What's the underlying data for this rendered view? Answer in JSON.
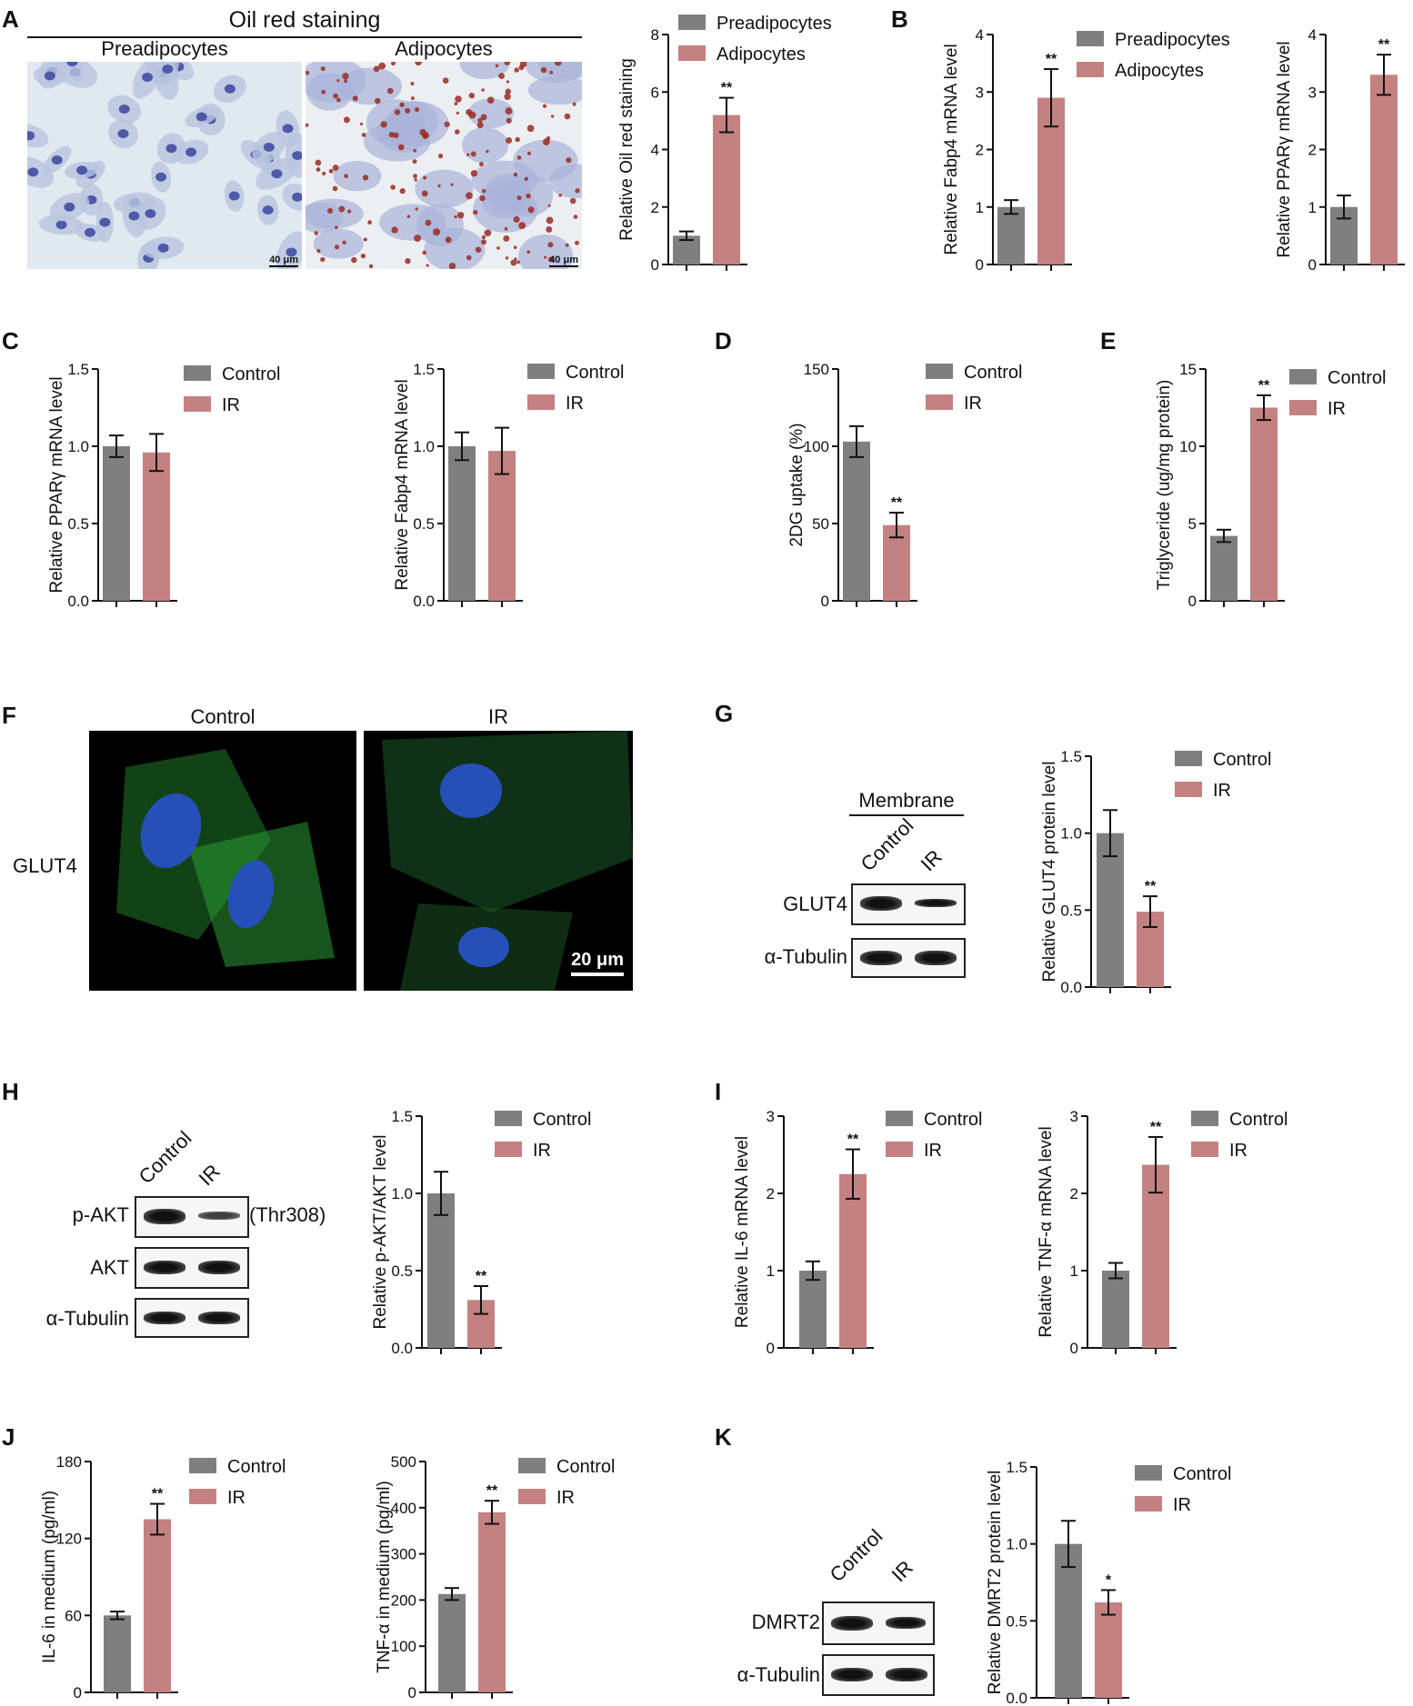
{
  "colors": {
    "gray": "#7f7f7f",
    "red": "#c48181"
  },
  "panel_letters": [
    "A",
    "B",
    "C",
    "D",
    "E",
    "F",
    "G",
    "H",
    "I",
    "J",
    "K"
  ],
  "panelA": {
    "title": "Oil red staining",
    "left_label": "Preadipocytes",
    "right_label": "Adipocytes",
    "scale_bar": "40 μm"
  },
  "panelF": {
    "control_label": "Control",
    "ir_label": "IR",
    "row_label": "GLUT4",
    "scale_bar": "20 μm"
  },
  "panelG": {
    "header": "Membrane",
    "lanes": [
      "Control",
      "IR"
    ],
    "rows": [
      "GLUT4",
      "α-Tubulin"
    ]
  },
  "panelH": {
    "lanes": [
      "Control",
      "IR"
    ],
    "rows": [
      "p-AKT",
      "AKT",
      "α-Tubulin"
    ],
    "annotation": "(Thr308)"
  },
  "panelK": {
    "lanes": [
      "Control",
      "IR"
    ],
    "rows": [
      "DMRT2",
      "α-Tubulin"
    ]
  },
  "chart_data": [
    {
      "id": "A",
      "type": "bar",
      "categories": [
        "Preadipocytes",
        "Adipocytes"
      ],
      "values": [
        1.0,
        5.2
      ],
      "errors": [
        0.15,
        0.6
      ],
      "sig": [
        "",
        "**"
      ],
      "ylabel": "Relative Oil red staining",
      "ylim": [
        0,
        8
      ],
      "ticks": [
        "0",
        "2",
        "4",
        "6",
        "8"
      ],
      "legend": [
        "Preadipocytes",
        "Adipocytes"
      ]
    },
    {
      "id": "B1",
      "type": "bar",
      "categories": [
        "Preadipocytes",
        "Adipocytes"
      ],
      "values": [
        1.0,
        2.9
      ],
      "errors": [
        0.12,
        0.5
      ],
      "sig": [
        "",
        "**"
      ],
      "ylabel": "Relative Fabp4 mRNA level",
      "ylim": [
        0,
        4
      ],
      "ticks": [
        "0",
        "1",
        "2",
        "3",
        "4"
      ],
      "legend": [
        "Preadipocytes",
        "Adipocytes"
      ]
    },
    {
      "id": "B2",
      "type": "bar",
      "categories": [
        "Preadipocytes",
        "Adipocytes"
      ],
      "values": [
        1.0,
        3.3
      ],
      "errors": [
        0.2,
        0.35
      ],
      "sig": [
        "",
        "**"
      ],
      "ylabel": "Relative PPARγ mRNA level",
      "ylim": [
        0,
        4
      ],
      "ticks": [
        "0",
        "1",
        "2",
        "3",
        "4"
      ],
      "legend": []
    },
    {
      "id": "C1",
      "type": "bar",
      "categories": [
        "Control",
        "IR"
      ],
      "values": [
        1.0,
        0.96
      ],
      "errors": [
        0.07,
        0.12
      ],
      "sig": [
        "",
        ""
      ],
      "ylabel": "Relative PPARγ mRNA level",
      "ylim": [
        0,
        1.5
      ],
      "ticks": [
        "0.0",
        "0.5",
        "1.0",
        "1.5"
      ],
      "legend": [
        "Control",
        "IR"
      ]
    },
    {
      "id": "C2",
      "type": "bar",
      "categories": [
        "Control",
        "IR"
      ],
      "values": [
        1.0,
        0.97
      ],
      "errors": [
        0.09,
        0.15
      ],
      "sig": [
        "",
        ""
      ],
      "ylabel": "Relative Fabp4 mRNA level",
      "ylim": [
        0,
        1.5
      ],
      "ticks": [
        "0.0",
        "0.5",
        "1.0",
        "1.5"
      ],
      "legend": [
        "Control",
        "IR"
      ]
    },
    {
      "id": "D",
      "type": "bar",
      "categories": [
        "Control",
        "IR"
      ],
      "values": [
        103,
        49
      ],
      "errors": [
        10,
        8
      ],
      "sig": [
        "",
        "**"
      ],
      "ylabel": "2DG uptake (%)",
      "ylim": [
        0,
        150
      ],
      "ticks": [
        "0",
        "50",
        "100",
        "150"
      ],
      "legend": [
        "Control",
        "IR"
      ]
    },
    {
      "id": "E",
      "type": "bar",
      "categories": [
        "Control",
        "IR"
      ],
      "values": [
        4.2,
        12.5
      ],
      "errors": [
        0.4,
        0.8
      ],
      "sig": [
        "",
        "**"
      ],
      "ylabel": "Triglyceride (ug/mg protein)",
      "ylim": [
        0,
        15
      ],
      "ticks": [
        "0",
        "5",
        "10",
        "15"
      ],
      "legend": [
        "Control",
        "IR"
      ]
    },
    {
      "id": "G",
      "type": "bar",
      "categories": [
        "Control",
        "IR"
      ],
      "values": [
        1.0,
        0.49
      ],
      "errors": [
        0.15,
        0.1
      ],
      "sig": [
        "",
        "**"
      ],
      "ylabel": "Relative GLUT4 protein level",
      "ylim": [
        0,
        1.5
      ],
      "ticks": [
        "0.0",
        "0.5",
        "1.0",
        "1.5"
      ],
      "legend": [
        "Control",
        "IR"
      ]
    },
    {
      "id": "H",
      "type": "bar",
      "categories": [
        "Control",
        "IR"
      ],
      "values": [
        1.0,
        0.31
      ],
      "errors": [
        0.14,
        0.09
      ],
      "sig": [
        "",
        "**"
      ],
      "ylabel": "Relative p-AKT/AKT level",
      "ylim": [
        0,
        1.5
      ],
      "ticks": [
        "0.0",
        "0.5",
        "1.0",
        "1.5"
      ],
      "legend": [
        "Control",
        "IR"
      ]
    },
    {
      "id": "I1",
      "type": "bar",
      "categories": [
        "Control",
        "IR"
      ],
      "values": [
        1.0,
        2.25
      ],
      "errors": [
        0.12,
        0.32
      ],
      "sig": [
        "",
        "**"
      ],
      "ylabel": "Relative IL-6 mRNA level",
      "ylim": [
        0,
        3
      ],
      "ticks": [
        "0",
        "1",
        "2",
        "3"
      ],
      "legend": [
        "Control",
        "IR"
      ]
    },
    {
      "id": "I2",
      "type": "bar",
      "categories": [
        "Control",
        "IR"
      ],
      "values": [
        1.0,
        2.37
      ],
      "errors": [
        0.1,
        0.36
      ],
      "sig": [
        "",
        "**"
      ],
      "ylabel": "Relative TNF-α mRNA level",
      "ylim": [
        0,
        3
      ],
      "ticks": [
        "0",
        "1",
        "2",
        "3"
      ],
      "legend": [
        "Control",
        "IR"
      ]
    },
    {
      "id": "J1",
      "type": "bar",
      "categories": [
        "Control",
        "IR"
      ],
      "values": [
        60,
        135
      ],
      "errors": [
        3,
        12
      ],
      "sig": [
        "",
        "**"
      ],
      "ylabel": "IL-6 in medium (pg/ml)",
      "ylim": [
        0,
        180
      ],
      "ticks": [
        "0",
        "60",
        "120",
        "180"
      ],
      "legend": [
        "Control",
        "IR"
      ]
    },
    {
      "id": "J2",
      "type": "bar",
      "categories": [
        "Control",
        "IR"
      ],
      "values": [
        213,
        390
      ],
      "errors": [
        13,
        25
      ],
      "sig": [
        "",
        "**"
      ],
      "ylabel": "TNF-α in medium (pg/ml)",
      "ylim": [
        0,
        500
      ],
      "ticks": [
        "0",
        "100",
        "200",
        "300",
        "400",
        "500"
      ],
      "legend": [
        "Control",
        "IR"
      ]
    },
    {
      "id": "K",
      "type": "bar",
      "categories": [
        "Control",
        "IR"
      ],
      "values": [
        1.0,
        0.62
      ],
      "errors": [
        0.15,
        0.08
      ],
      "sig": [
        "",
        "*"
      ],
      "ylabel": "Relative DMRT2 protein level",
      "ylim": [
        0,
        1.5
      ],
      "ticks": [
        "0.0",
        "0.5",
        "1.0",
        "1.5"
      ],
      "legend": [
        "Control",
        "IR"
      ]
    }
  ]
}
